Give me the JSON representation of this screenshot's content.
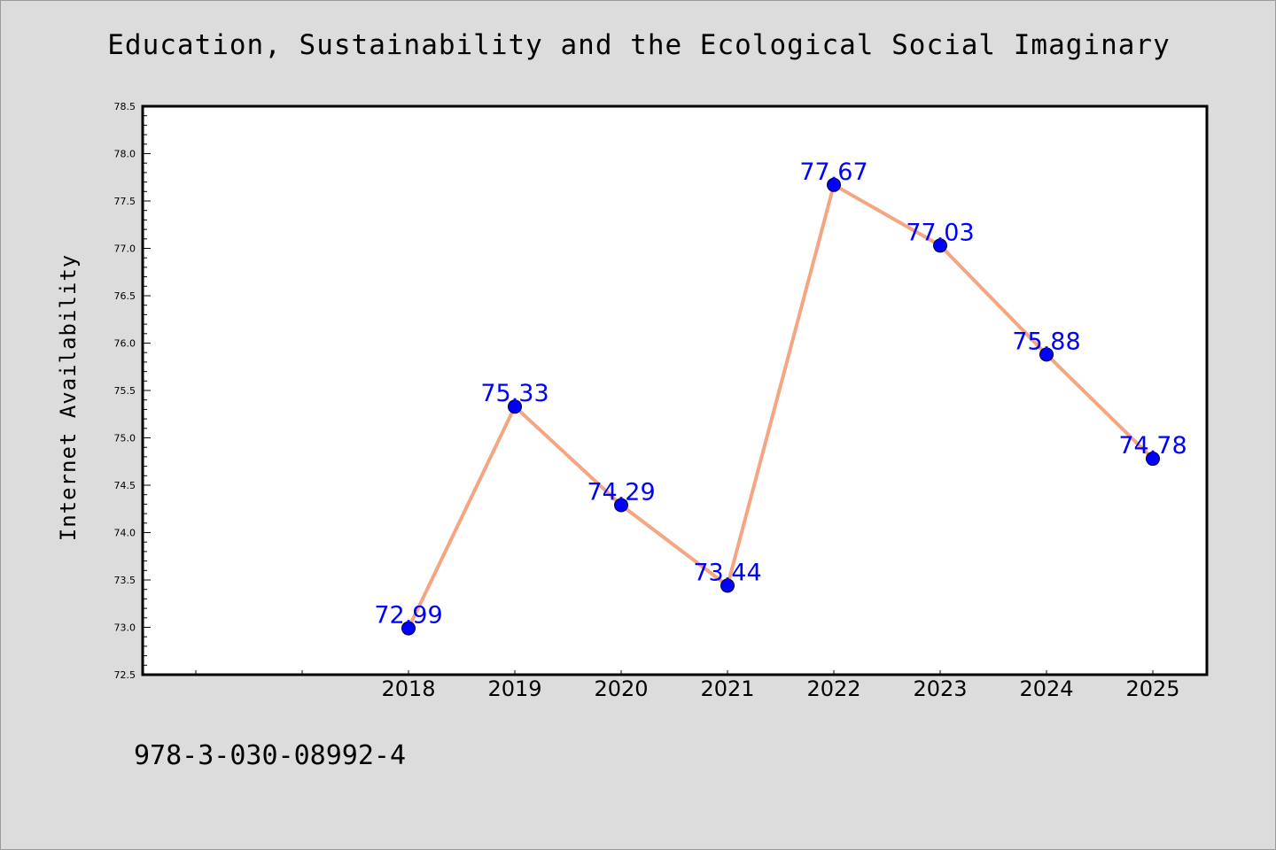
{
  "chart_data": {
    "type": "line",
    "title": "Education, Sustainability and the Ecological Social Imaginary",
    "xlabel": "",
    "ylabel": "Internet Availability",
    "categories": [
      "2018",
      "2019",
      "2020",
      "2021",
      "2022",
      "2023",
      "2024",
      "2025"
    ],
    "series": [
      {
        "values": [
          72.99,
          75.33,
          74.29,
          73.44,
          77.67,
          77.03,
          75.88,
          74.78
        ]
      }
    ],
    "data_labels": [
      "72.99",
      "75.33",
      "74.29",
      "73.44",
      "77.67",
      "77.03",
      "75.88",
      "74.78"
    ],
    "ylim": [
      72.5,
      78.5
    ],
    "y_ticks": [
      "72.5",
      "73.0",
      "73.5",
      "74.0",
      "74.5",
      "75.0",
      "75.5",
      "76.0",
      "76.5",
      "77.0",
      "77.5",
      "78.0",
      "78.5"
    ],
    "x_slots": 10,
    "first_category_slot": 2,
    "grid": false,
    "legend": "none",
    "colors": {
      "line": "#f4a582",
      "marker": "#0000ff",
      "label": "#0000ff",
      "plot_background": "#ffffff",
      "page_background": "#dcdcdc"
    }
  },
  "footer": {
    "isbn": "978-3-030-08992-4"
  }
}
